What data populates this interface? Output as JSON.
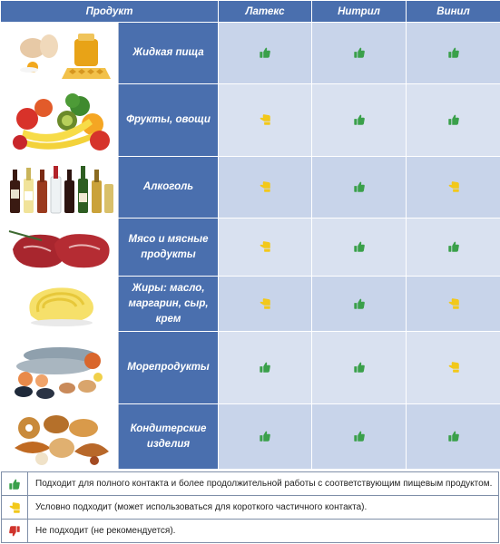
{
  "header": {
    "product": "Продукт",
    "latex": "Латекс",
    "nitrile": "Нитрил",
    "vinyl": "Винил"
  },
  "colors": {
    "header_bg": "#4a6fae",
    "cell_bg": "#c8d4ea",
    "good": "#3aa04a",
    "conditional": "#f2c81a",
    "bad": "#d0342c"
  },
  "rows": [
    {
      "name": "Жидкая пища",
      "latex": "good",
      "nitrile": "good",
      "vinyl": "good"
    },
    {
      "name": "Фрукты, овощи",
      "latex": "conditional",
      "nitrile": "good",
      "vinyl": "good"
    },
    {
      "name": "Алкоголь",
      "latex": "conditional",
      "nitrile": "good",
      "vinyl": "conditional"
    },
    {
      "name": "Мясо и мясные продукты",
      "latex": "conditional",
      "nitrile": "good",
      "vinyl": "good"
    },
    {
      "name": "Жиры: масло, маргарин, сыр, крем",
      "latex": "conditional",
      "nitrile": "good",
      "vinyl": "conditional"
    },
    {
      "name": "Морепродукты",
      "latex": "good",
      "nitrile": "good",
      "vinyl": "conditional"
    },
    {
      "name": "Кондитерские изделия",
      "latex": "good",
      "nitrile": "good",
      "vinyl": "good"
    }
  ],
  "legend": {
    "good": "Подходит для полного контакта и более продолжительной работы с соответствующим пищевым продуктом.",
    "conditional": "Условно подходит (может использоваться для короткого частичного контакта).",
    "bad": "Не подходит (не рекомендуется)."
  }
}
